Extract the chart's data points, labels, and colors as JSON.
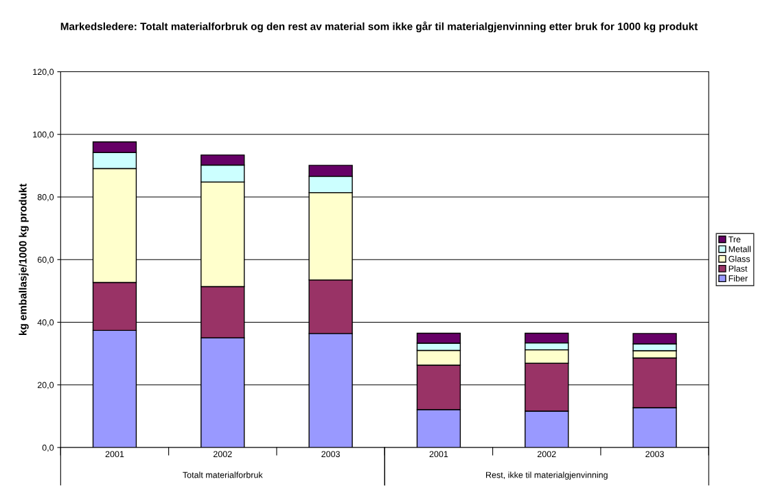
{
  "chart_data": {
    "type": "bar",
    "stacked": true,
    "title": "Markedsledere: Totalt materialforbruk og den rest av material som ikke går til materialgjenvinning etter bruk for 1000 kg produkt",
    "ylabel": "kg emballasje/1000 kg produkt",
    "categories": [
      "2001",
      "2002",
      "2003",
      "2001",
      "2002",
      "2003"
    ],
    "annotations": [
      "Totalt materialforbruk",
      "Rest, ikke til materialgjenvinning"
    ],
    "series": [
      {
        "name": "Fiber",
        "color": "#9999ff",
        "values": [
          37.4,
          35.0,
          36.4,
          12.1,
          11.6,
          12.7
        ]
      },
      {
        "name": "Plast",
        "color": "#993366",
        "values": [
          15.3,
          16.4,
          17.1,
          14.2,
          15.3,
          15.9
        ]
      },
      {
        "name": "Glass",
        "color": "#ffffcc",
        "values": [
          36.4,
          33.4,
          27.9,
          4.7,
          4.3,
          2.3
        ]
      },
      {
        "name": "Metall",
        "color": "#ccffff",
        "values": [
          5.1,
          5.4,
          5.2,
          2.3,
          2.2,
          2.2
        ]
      },
      {
        "name": "Tre",
        "color": "#660066",
        "values": [
          3.4,
          3.2,
          3.5,
          3.2,
          3.1,
          3.3
        ]
      }
    ],
    "ylim": [
      0,
      120
    ],
    "yticks": [
      {
        "value": 0,
        "label": "0,0"
      },
      {
        "value": 20,
        "label": "20,0"
      },
      {
        "value": 40,
        "label": "40,0"
      },
      {
        "value": 60,
        "label": "60,0"
      },
      {
        "value": 80,
        "label": "80,0"
      },
      {
        "value": 100,
        "label": "100,0"
      },
      {
        "value": 120,
        "label": "120,0"
      }
    ],
    "grid": "y",
    "legend": "right"
  }
}
